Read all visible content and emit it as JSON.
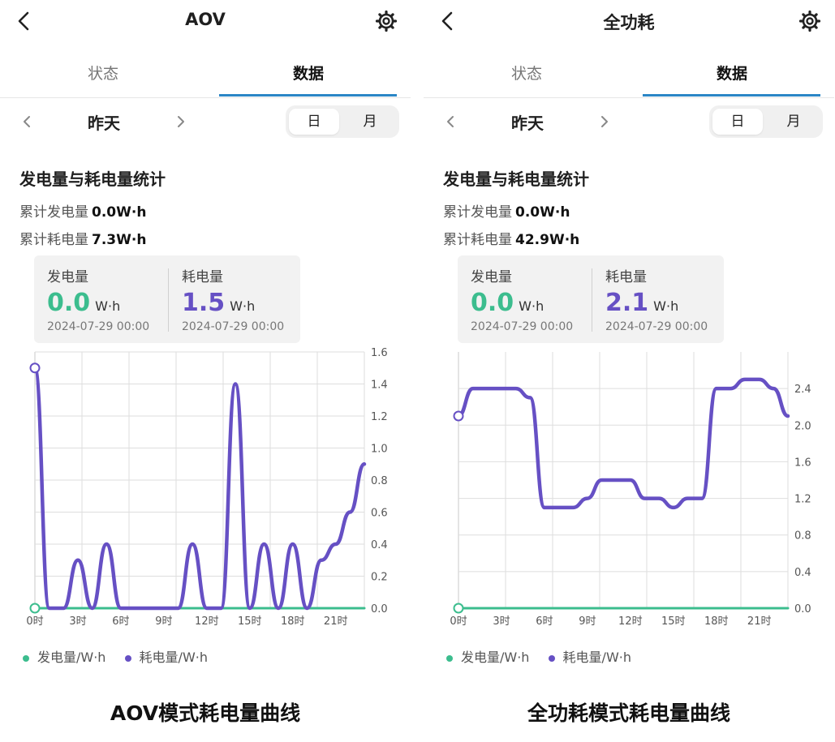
{
  "colors": {
    "generation": "#3cbd8e",
    "consumption": "#6650c4",
    "tab_active": "#2b86c6"
  },
  "panels": [
    {
      "title": "AOV",
      "tabs": [
        "状态",
        "数据"
      ],
      "date_label": "昨天",
      "segment": [
        "日",
        "月"
      ],
      "section_title": "发电量与耗电量统计",
      "cum_gen_label": "累计发电量",
      "cum_gen_value": "0.0W·h",
      "cum_cons_label": "累计耗电量",
      "cum_cons_value": "7.3W·h",
      "tooltip": {
        "gen_label": "发电量",
        "gen_value": "0.0",
        "gen_unit": "W·h",
        "cons_label": "耗电量",
        "cons_value": "1.5",
        "cons_unit": "W·h",
        "timestamp_gen": "2024-07-29 00:00",
        "timestamp_cons": "2024-07-29 00:00"
      },
      "legend": [
        "发电量/W·h",
        "耗电量/W·h"
      ],
      "caption": "AOV模式耗电量曲线"
    },
    {
      "title": "全功耗",
      "tabs": [
        "状态",
        "数据"
      ],
      "date_label": "昨天",
      "segment": [
        "日",
        "月"
      ],
      "section_title": "发电量与耗电量统计",
      "cum_gen_label": "累计发电量",
      "cum_gen_value": "0.0W·h",
      "cum_cons_label": "累计耗电量",
      "cum_cons_value": "42.9W·h",
      "tooltip": {
        "gen_label": "发电量",
        "gen_value": "0.0",
        "gen_unit": "W·h",
        "cons_label": "耗电量",
        "cons_value": "2.1",
        "cons_unit": "W·h",
        "timestamp_gen": "2024-07-29 00:00",
        "timestamp_cons": "2024-07-29 00:00"
      },
      "legend": [
        "发电量/W·h",
        "耗电量/W·h"
      ],
      "caption": "全功耗模式耗电量曲线"
    }
  ],
  "chart_data": [
    {
      "type": "line",
      "x": [
        "0时",
        "1时",
        "2时",
        "3时",
        "4时",
        "5时",
        "6时",
        "7时",
        "8时",
        "9时",
        "10时",
        "11时",
        "12时",
        "13时",
        "14时",
        "15时",
        "16时",
        "17时",
        "18时",
        "19时",
        "20时",
        "21时",
        "22时",
        "23时"
      ],
      "xticks": [
        "0时",
        "3时",
        "6时",
        "9时",
        "12时",
        "15时",
        "18时",
        "21时"
      ],
      "ylim": [
        0,
        1.6
      ],
      "yticks": [
        0.0,
        0.2,
        0.4,
        0.6,
        0.8,
        1.0,
        1.2,
        1.4,
        1.6
      ],
      "series": [
        {
          "name": "发电量/W·h",
          "values": [
            0,
            0,
            0,
            0,
            0,
            0,
            0,
            0,
            0,
            0,
            0,
            0,
            0,
            0,
            0,
            0,
            0,
            0,
            0,
            0,
            0,
            0,
            0,
            0
          ]
        },
        {
          "name": "耗电量/W·h",
          "values": [
            1.5,
            0,
            0,
            0.3,
            0,
            0.4,
            0,
            0,
            0,
            0,
            0,
            0.4,
            0,
            0,
            1.4,
            0,
            0.4,
            0,
            0.4,
            0,
            0.3,
            0.4,
            0.6,
            0.9
          ]
        }
      ],
      "grid": true,
      "y_axis_side": "right",
      "legend_position": "bottom"
    },
    {
      "type": "line",
      "x": [
        "0时",
        "1时",
        "2时",
        "3时",
        "4时",
        "5时",
        "6时",
        "7时",
        "8时",
        "9时",
        "10时",
        "11时",
        "12时",
        "13时",
        "14时",
        "15时",
        "16时",
        "17时",
        "18时",
        "19时",
        "20时",
        "21时",
        "22时",
        "23时"
      ],
      "xticks": [
        "0时",
        "3时",
        "6时",
        "9时",
        "12时",
        "15时",
        "18时",
        "21时"
      ],
      "ylim": [
        0,
        2.8
      ],
      "yticks": [
        0.0,
        0.4,
        0.8,
        1.2,
        1.6,
        2.0,
        2.4
      ],
      "series": [
        {
          "name": "发电量/W·h",
          "values": [
            0,
            0,
            0,
            0,
            0,
            0,
            0,
            0,
            0,
            0,
            0,
            0,
            0,
            0,
            0,
            0,
            0,
            0,
            0,
            0,
            0,
            0,
            0,
            0
          ]
        },
        {
          "name": "耗电量/W·h",
          "values": [
            2.1,
            2.4,
            2.4,
            2.4,
            2.4,
            2.3,
            1.1,
            1.1,
            1.1,
            1.2,
            1.4,
            1.4,
            1.4,
            1.2,
            1.2,
            1.1,
            1.2,
            1.2,
            2.4,
            2.4,
            2.5,
            2.5,
            2.4,
            2.1
          ]
        }
      ],
      "grid": true,
      "y_axis_side": "right",
      "legend_position": "bottom"
    }
  ]
}
